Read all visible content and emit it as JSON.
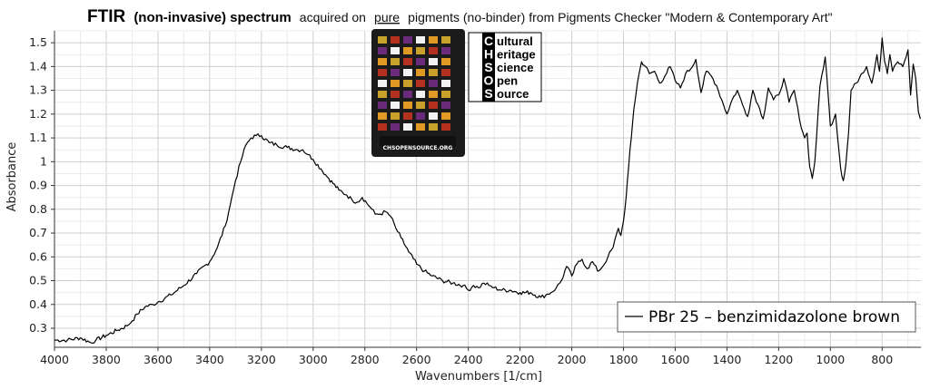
{
  "title": {
    "bold": "FTIR",
    "mid": "(non-invasive) spectrum",
    "rest_a": "acquired on",
    "rest_underlined": "pure",
    "rest_b": "pigments (no-binder) from Pigments Checker \"Modern & Contemporary Art\""
  },
  "logo": {
    "letters": [
      "C",
      "H",
      "S",
      "O",
      "S"
    ],
    "words": [
      "ultural",
      "eritage",
      "cience",
      "pen",
      "ource"
    ],
    "card_caption": "CHSOPENSOURCE.ORG"
  },
  "chart_data": {
    "type": "line",
    "xlabel": "Wavenumbers [1/cm]",
    "ylabel": "Absorbance",
    "xlim": [
      4000,
      650
    ],
    "ylim": [
      0.22,
      1.55
    ],
    "x_reversed": true,
    "grid": true,
    "legend_position": "bottom-right",
    "x_ticks": [
      "4000",
      "3800",
      "3600",
      "3400",
      "3200",
      "3000",
      "2800",
      "2600",
      "2400",
      "2200",
      "2000",
      "1800",
      "1600",
      "1400",
      "1200",
      "1000",
      "800"
    ],
    "y_ticks": [
      "0.3",
      "0.4",
      "0.5",
      "0.6",
      "0.7",
      "0.8",
      "0.9",
      "1",
      "1.1",
      "1.2",
      "1.3",
      "1.4",
      "1.5"
    ],
    "series": [
      {
        "name": "PBr 25 – benzimidazolone brown",
        "color": "#000000",
        "x": [
          4000,
          3950,
          3900,
          3860,
          3840,
          3800,
          3760,
          3720,
          3700,
          3680,
          3650,
          3620,
          3600,
          3550,
          3500,
          3450,
          3400,
          3370,
          3340,
          3320,
          3300,
          3280,
          3260,
          3240,
          3220,
          3200,
          3170,
          3140,
          3100,
          3060,
          3040,
          3020,
          3000,
          2970,
          2940,
          2900,
          2870,
          2850,
          2830,
          2810,
          2780,
          2760,
          2740,
          2720,
          2700,
          2680,
          2660,
          2630,
          2600,
          2570,
          2540,
          2500,
          2460,
          2420,
          2400,
          2380,
          2360,
          2340,
          2320,
          2300,
          2270,
          2240,
          2200,
          2160,
          2120,
          2100,
          2080,
          2060,
          2040,
          2020,
          2000,
          1980,
          1960,
          1940,
          1920,
          1900,
          1880,
          1860,
          1840,
          1820,
          1810,
          1800,
          1790,
          1780,
          1770,
          1760,
          1745,
          1730,
          1715,
          1700,
          1680,
          1660,
          1640,
          1620,
          1600,
          1580,
          1560,
          1540,
          1520,
          1500,
          1480,
          1460,
          1440,
          1420,
          1400,
          1380,
          1360,
          1340,
          1320,
          1300,
          1280,
          1260,
          1240,
          1220,
          1200,
          1180,
          1160,
          1140,
          1120,
          1100,
          1090,
          1080,
          1070,
          1060,
          1040,
          1020,
          1010,
          1000,
          980,
          960,
          950,
          940,
          930,
          920,
          900,
          880,
          860,
          840,
          820,
          810,
          800,
          790,
          780,
          770,
          760,
          740,
          720,
          700,
          690,
          680,
          670,
          660,
          652
        ],
        "y": [
          0.25,
          0.25,
          0.26,
          0.24,
          0.25,
          0.27,
          0.29,
          0.31,
          0.33,
          0.36,
          0.39,
          0.4,
          0.41,
          0.44,
          0.48,
          0.53,
          0.58,
          0.64,
          0.73,
          0.82,
          0.92,
          1.0,
          1.07,
          1.1,
          1.11,
          1.11,
          1.08,
          1.07,
          1.06,
          1.05,
          1.05,
          1.03,
          1.01,
          0.97,
          0.93,
          0.88,
          0.86,
          0.84,
          0.83,
          0.85,
          0.81,
          0.78,
          0.78,
          0.79,
          0.77,
          0.72,
          0.68,
          0.62,
          0.57,
          0.54,
          0.52,
          0.5,
          0.49,
          0.48,
          0.46,
          0.48,
          0.47,
          0.49,
          0.48,
          0.47,
          0.46,
          0.46,
          0.45,
          0.45,
          0.43,
          0.44,
          0.45,
          0.47,
          0.5,
          0.56,
          0.52,
          0.57,
          0.59,
          0.55,
          0.58,
          0.54,
          0.56,
          0.6,
          0.64,
          0.72,
          0.69,
          0.75,
          0.85,
          0.98,
          1.1,
          1.22,
          1.34,
          1.42,
          1.4,
          1.37,
          1.38,
          1.33,
          1.36,
          1.4,
          1.34,
          1.31,
          1.37,
          1.39,
          1.43,
          1.29,
          1.38,
          1.36,
          1.32,
          1.26,
          1.2,
          1.26,
          1.3,
          1.24,
          1.19,
          1.3,
          1.24,
          1.18,
          1.31,
          1.26,
          1.28,
          1.35,
          1.25,
          1.3,
          1.18,
          1.1,
          1.12,
          0.98,
          0.93,
          1.0,
          1.32,
          1.44,
          1.3,
          1.15,
          1.2,
          0.97,
          0.92,
          0.99,
          1.12,
          1.3,
          1.33,
          1.37,
          1.4,
          1.33,
          1.45,
          1.38,
          1.52,
          1.42,
          1.37,
          1.45,
          1.38,
          1.42,
          1.4,
          1.47,
          1.28,
          1.41,
          1.35,
          1.21,
          1.18
        ]
      }
    ]
  }
}
